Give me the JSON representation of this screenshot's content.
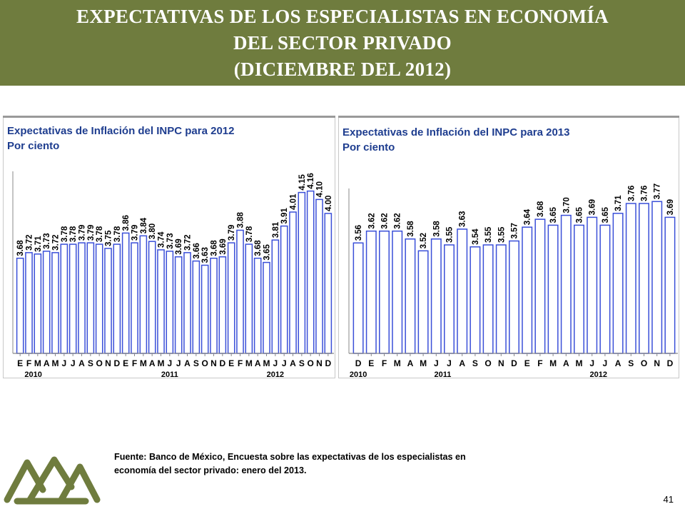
{
  "slide": {
    "title_lines": [
      "EXPECTATIVAS DE LOS ESPECIALISTAS EN ECONOMÍA",
      "DEL SECTOR PRIVADO",
      "(DICIEMBRE DEL 2012)"
    ],
    "source_lines": [
      "Fuente: Banco de México, Encuesta sobre las expectativas de los especialistas en",
      "economía del sector privado: enero del 2013."
    ],
    "page_number": "41",
    "colors": {
      "banner": "#6f7c3e",
      "bar_stroke": "#3a4fd8",
      "title_text": "#1e3d8f",
      "logo": "#6f7c3e"
    },
    "logo_icon": "mountain-logo-icon"
  },
  "chart_data": [
    {
      "type": "bar",
      "title": "Expectativas de Inflación del INPC para 2012",
      "subtitle": "Por ciento",
      "categories": [
        "E",
        "F",
        "M",
        "A",
        "M",
        "J",
        "J",
        "A",
        "S",
        "O",
        "N",
        "D",
        "E",
        "F",
        "M",
        "A",
        "M",
        "J",
        "J",
        "A",
        "S",
        "O",
        "N",
        "D",
        "E",
        "F",
        "M",
        "A",
        "M",
        "J",
        "J",
        "A",
        "S",
        "O",
        "N",
        "D"
      ],
      "year_labels": [
        {
          "label": "2010",
          "index": 1.5
        },
        {
          "label": "2011",
          "index": 17
        },
        {
          "label": "2012",
          "index": 29
        }
      ],
      "values": [
        3.68,
        3.72,
        3.71,
        3.73,
        3.72,
        3.78,
        3.78,
        3.79,
        3.79,
        3.78,
        3.75,
        3.78,
        3.86,
        3.79,
        3.84,
        3.8,
        3.74,
        3.73,
        3.69,
        3.72,
        3.66,
        3.63,
        3.68,
        3.69,
        3.79,
        3.88,
        3.78,
        3.68,
        3.65,
        3.81,
        3.91,
        4.01,
        4.15,
        4.16,
        4.1,
        4.0
      ],
      "value_labels": [
        "3.68",
        "3.72",
        "3.71",
        "3.73",
        "3.72",
        "3.78",
        "3.78",
        "3.79",
        "3.79",
        "3.78",
        "3.75",
        "3.78",
        "3.86",
        "3.79",
        "3.84",
        "3.80",
        "3.74",
        "3.73",
        "3.69",
        "3.72",
        "3.66",
        "3.63",
        "3.68",
        "3.69",
        "3.79",
        "3.88",
        "3.78",
        "3.68",
        "3.65",
        "3.81",
        "3.91",
        "4.01",
        "4.15",
        "4.16",
        "4.10",
        "4.00"
      ],
      "ylim": [
        3.0,
        4.25
      ],
      "grid": false,
      "legend": "none"
    },
    {
      "type": "bar",
      "title": "Expectativas de Inflación del INPC para 2013",
      "subtitle": "Por ciento",
      "categories": [
        "D",
        "E",
        "F",
        "M",
        "A",
        "M",
        "J",
        "J",
        "A",
        "S",
        "O",
        "N",
        "D",
        "E",
        "F",
        "M",
        "A",
        "M",
        "J",
        "J",
        "A",
        "S",
        "O",
        "N",
        "D"
      ],
      "year_labels": [
        {
          "label": "2010",
          "index": 0
        },
        {
          "label": "2011",
          "index": 6.5
        },
        {
          "label": "2012",
          "index": 18.5
        }
      ],
      "values": [
        3.56,
        3.62,
        3.62,
        3.62,
        3.58,
        3.52,
        3.58,
        3.55,
        3.63,
        3.54,
        3.55,
        3.55,
        3.57,
        3.64,
        3.68,
        3.65,
        3.7,
        3.65,
        3.69,
        3.65,
        3.71,
        3.76,
        3.76,
        3.77,
        3.69
      ],
      "value_labels": [
        "3.56",
        "3.62",
        "3.62",
        "3.62",
        "3.58",
        "3.52",
        "3.58",
        "3.55",
        "3.63",
        "3.54",
        "3.55",
        "3.55",
        "3.57",
        "3.64",
        "3.68",
        "3.65",
        "3.70",
        "3.65",
        "3.69",
        "3.65",
        "3.71",
        "3.76",
        "3.76",
        "3.77",
        "3.69"
      ],
      "ylim": [
        3.0,
        3.8
      ],
      "grid": false,
      "legend": "none"
    }
  ]
}
